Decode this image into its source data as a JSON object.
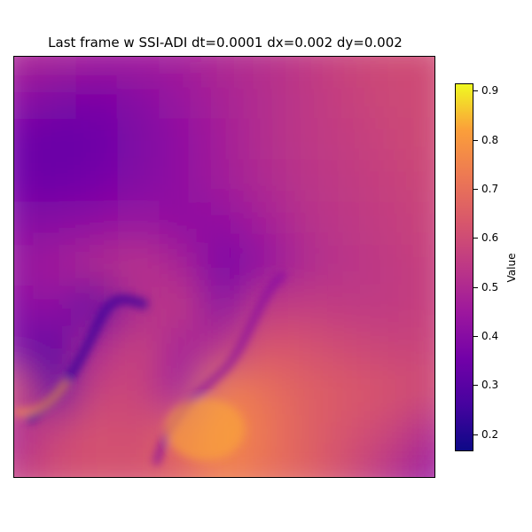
{
  "chart_data": {
    "type": "heatmap",
    "title": "Last frame w SSI-ADI dt=0.0001 dx=0.002 dy=0.002",
    "xlabel": "",
    "ylabel": "",
    "axes_ticks_visible": false,
    "colormap": "plasma",
    "value_range": [
      0.165,
      0.915
    ],
    "colorbar": {
      "label": "Value",
      "ticks": [
        "0.2",
        "0.3",
        "0.4",
        "0.5",
        "0.6",
        "0.7",
        "0.8",
        "0.9"
      ],
      "tick_values": [
        0.2,
        0.3,
        0.4,
        0.5,
        0.6,
        0.7,
        0.8,
        0.9
      ],
      "placement": "right"
    },
    "grid_values": [
      [
        0.49,
        0.48,
        0.46,
        0.46,
        0.47,
        0.5,
        0.52,
        0.55,
        0.58,
        0.6,
        0.6
      ],
      [
        0.42,
        0.38,
        0.37,
        0.4,
        0.44,
        0.48,
        0.51,
        0.54,
        0.57,
        0.59,
        0.6
      ],
      [
        0.35,
        0.33,
        0.34,
        0.38,
        0.42,
        0.47,
        0.51,
        0.54,
        0.56,
        0.58,
        0.6
      ],
      [
        0.35,
        0.34,
        0.36,
        0.39,
        0.42,
        0.46,
        0.5,
        0.53,
        0.55,
        0.57,
        0.59
      ],
      [
        0.4,
        0.4,
        0.42,
        0.44,
        0.42,
        0.42,
        0.47,
        0.52,
        0.54,
        0.56,
        0.58
      ],
      [
        0.44,
        0.46,
        0.5,
        0.53,
        0.48,
        0.37,
        0.42,
        0.5,
        0.53,
        0.55,
        0.57
      ],
      [
        0.4,
        0.42,
        0.3,
        0.5,
        0.55,
        0.4,
        0.55,
        0.56,
        0.55,
        0.55,
        0.57
      ],
      [
        0.38,
        0.3,
        0.5,
        0.58,
        0.46,
        0.52,
        0.64,
        0.62,
        0.6,
        0.58,
        0.58
      ],
      [
        0.62,
        0.3,
        0.58,
        0.58,
        0.45,
        0.75,
        0.7,
        0.66,
        0.64,
        0.62,
        0.6
      ],
      [
        0.48,
        0.58,
        0.62,
        0.6,
        0.68,
        0.78,
        0.72,
        0.66,
        0.62,
        0.58,
        0.5
      ],
      [
        0.55,
        0.6,
        0.62,
        0.62,
        0.66,
        0.74,
        0.7,
        0.66,
        0.6,
        0.52,
        0.44
      ]
    ]
  }
}
